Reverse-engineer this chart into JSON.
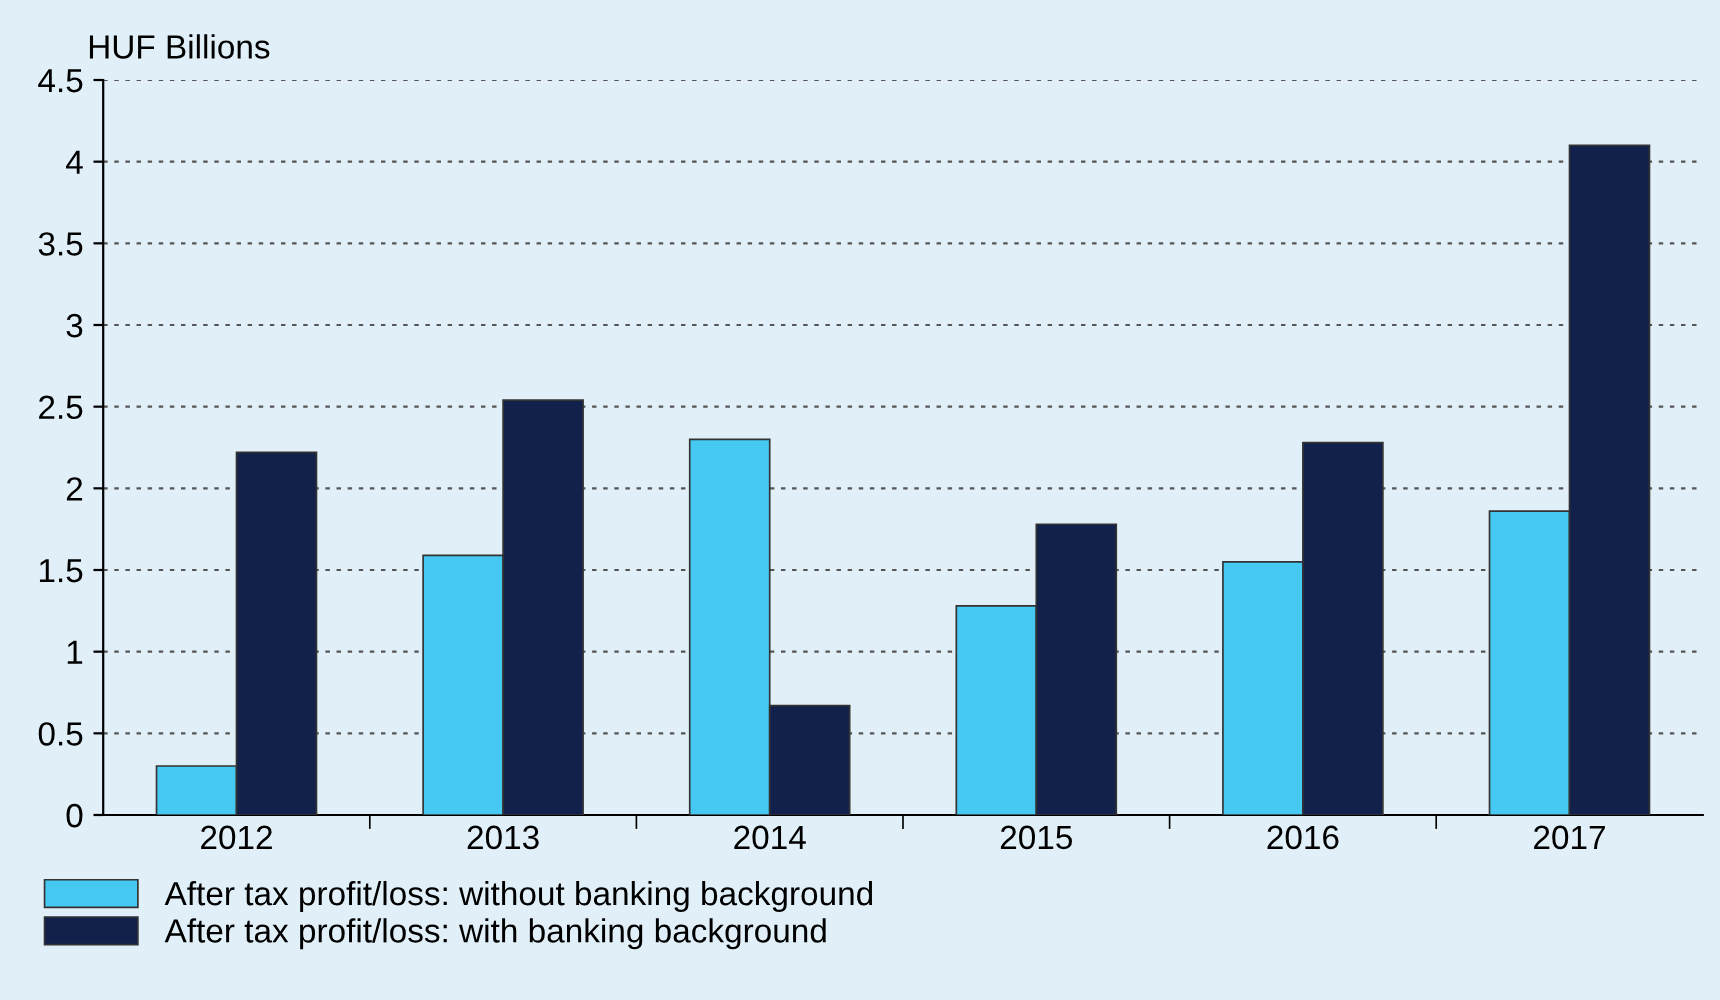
{
  "chart_data": {
    "type": "bar",
    "ylabel": "HUF Billions",
    "categories": [
      "2012",
      "2013",
      "2014",
      "2015",
      "2016",
      "2017"
    ],
    "series": [
      {
        "name": "After tax profit/loss: without banking background",
        "color": "#45c9f2",
        "values": [
          0.3,
          1.59,
          2.3,
          1.28,
          1.55,
          1.86
        ]
      },
      {
        "name": "After tax profit/loss: with banking background",
        "color": "#12214b",
        "values": [
          2.22,
          2.54,
          0.67,
          1.78,
          2.28,
          4.1
        ]
      }
    ],
    "ylim": [
      0,
      4.5
    ],
    "yticks": [
      0,
      0.5,
      1,
      1.5,
      2,
      2.5,
      3,
      3.5,
      4,
      4.5
    ],
    "grid": "y",
    "legend": "bottom left"
  }
}
